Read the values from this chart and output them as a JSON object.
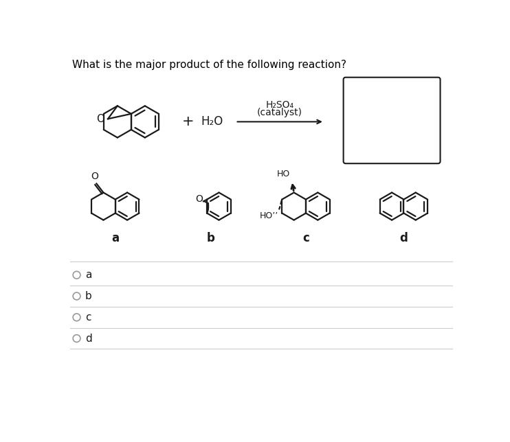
{
  "title": "What is the major product of the following reaction?",
  "bg_color": "#ffffff",
  "text_color": "#000000",
  "reaction_label_line1": "H₂SO₄",
  "reaction_label_line2": "(catalyst)",
  "h2o_text": "H₂O",
  "plus_text": "+",
  "choices": [
    "a",
    "b",
    "c",
    "d"
  ],
  "line_color": "#cccccc",
  "struct_color": "#1a1a1a",
  "struct_lw": 1.6
}
